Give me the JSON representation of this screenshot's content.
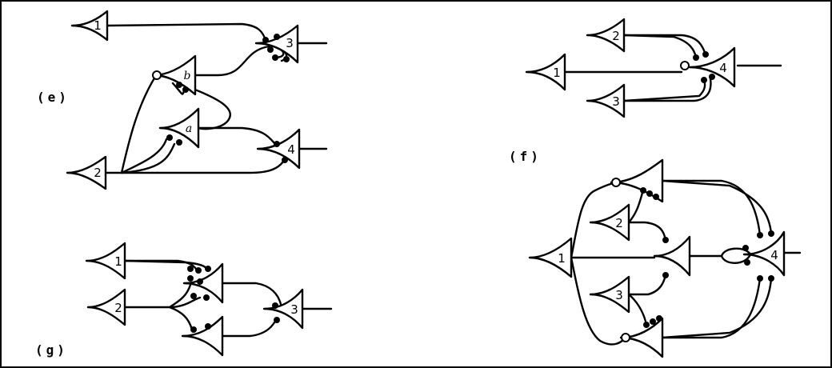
{
  "panels": {
    "e": {
      "label": "(e)",
      "neurons": [
        "1",
        "b",
        "3",
        "a",
        "4",
        "2"
      ]
    },
    "f": {
      "label": "(f)",
      "neurons": [
        "2",
        "1",
        "4",
        "3"
      ]
    },
    "g": {
      "label": "(g)",
      "neurons": [
        "1",
        "2",
        "3"
      ]
    },
    "h": {
      "neurons": [
        "2",
        "1",
        "4",
        "3"
      ]
    }
  }
}
